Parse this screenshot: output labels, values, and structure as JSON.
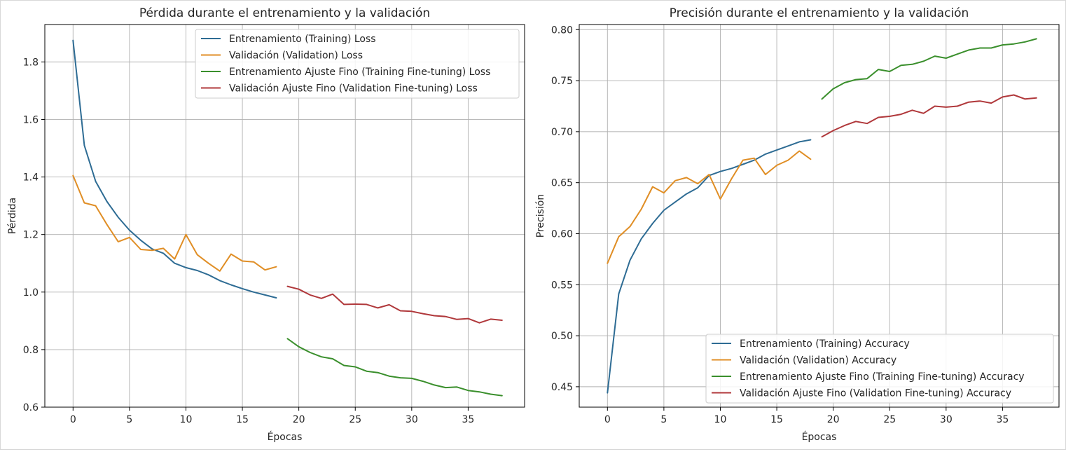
{
  "chart_data": [
    {
      "type": "line",
      "title": "Pérdida durante el entrenamiento y la validación",
      "xlabel": "Épocas",
      "ylabel": "Pérdida",
      "xlim": [
        -2.5,
        40
      ],
      "ylim": [
        0.6,
        1.93
      ],
      "xticks": [
        0,
        5,
        10,
        15,
        20,
        25,
        30,
        35
      ],
      "xtick_labels": [
        "0",
        "5",
        "10",
        "15",
        "20",
        "25",
        "30",
        "35"
      ],
      "yticks": [
        0.6,
        0.8,
        1.0,
        1.2,
        1.4,
        1.6,
        1.8
      ],
      "ytick_labels": [
        "0.6",
        "0.8",
        "1.0",
        "1.2",
        "1.4",
        "1.6",
        "1.8"
      ],
      "grid": true,
      "legend_position": "top-right",
      "series": [
        {
          "name": "Entrenamiento (Training) Loss",
          "color": "#2e6c94",
          "x_start": 0,
          "values": [
            1.875,
            1.51,
            1.385,
            1.315,
            1.26,
            1.215,
            1.18,
            1.15,
            1.135,
            1.1,
            1.085,
            1.075,
            1.06,
            1.04,
            1.025,
            1.012,
            1.0,
            0.99,
            0.98
          ]
        },
        {
          "name": "Validación (Validation) Loss",
          "color": "#e08e25",
          "x_start": 0,
          "values": [
            1.405,
            1.31,
            1.3,
            1.235,
            1.175,
            1.19,
            1.148,
            1.145,
            1.152,
            1.115,
            1.2,
            1.13,
            1.1,
            1.073,
            1.132,
            1.108,
            1.105,
            1.077,
            1.088
          ]
        },
        {
          "name": "Entrenamiento Ajuste Fino (Training Fine-tuning) Loss",
          "color": "#3a8f2c",
          "x_start": 19,
          "values": [
            0.838,
            0.81,
            0.79,
            0.775,
            0.768,
            0.745,
            0.74,
            0.725,
            0.72,
            0.708,
            0.702,
            0.7,
            0.69,
            0.677,
            0.668,
            0.67,
            0.658,
            0.653,
            0.645,
            0.64
          ]
        },
        {
          "name": "Validación Ajuste Fino (Validation Fine-tuning) Loss",
          "color": "#b0383b",
          "x_start": 19,
          "values": [
            1.02,
            1.01,
            0.99,
            0.978,
            0.993,
            0.957,
            0.958,
            0.957,
            0.945,
            0.956,
            0.935,
            0.933,
            0.925,
            0.918,
            0.915,
            0.905,
            0.908,
            0.893,
            0.906,
            0.902
          ]
        }
      ]
    },
    {
      "type": "line",
      "title": "Precisión durante el entrenamiento y la validación",
      "xlabel": "Épocas",
      "ylabel": "Precisión",
      "xlim": [
        -2.5,
        40
      ],
      "ylim": [
        0.43,
        0.805
      ],
      "xticks": [
        0,
        5,
        10,
        15,
        20,
        25,
        30,
        35
      ],
      "xtick_labels": [
        "0",
        "5",
        "10",
        "15",
        "20",
        "25",
        "30",
        "35"
      ],
      "yticks": [
        0.45,
        0.5,
        0.55,
        0.6,
        0.65,
        0.7,
        0.75,
        0.8
      ],
      "ytick_labels": [
        "0.45",
        "0.50",
        "0.55",
        "0.60",
        "0.65",
        "0.70",
        "0.75",
        "0.80"
      ],
      "grid": true,
      "legend_position": "bottom-right",
      "series": [
        {
          "name": "Entrenamiento (Training) Accuracy",
          "color": "#2e6c94",
          "x_start": 0,
          "values": [
            0.444,
            0.541,
            0.574,
            0.595,
            0.61,
            0.623,
            0.631,
            0.639,
            0.645,
            0.657,
            0.661,
            0.664,
            0.668,
            0.672,
            0.678,
            0.682,
            0.686,
            0.69,
            0.692
          ]
        },
        {
          "name": "Validación (Validation) Accuracy",
          "color": "#e08e25",
          "x_start": 0,
          "values": [
            0.571,
            0.597,
            0.607,
            0.624,
            0.646,
            0.64,
            0.652,
            0.655,
            0.649,
            0.658,
            0.634,
            0.654,
            0.672,
            0.674,
            0.658,
            0.667,
            0.672,
            0.681,
            0.673
          ]
        },
        {
          "name": "Entrenamiento Ajuste Fino (Training Fine-tuning) Accuracy",
          "color": "#3a8f2c",
          "x_start": 19,
          "values": [
            0.732,
            0.742,
            0.748,
            0.751,
            0.752,
            0.761,
            0.759,
            0.765,
            0.766,
            0.769,
            0.774,
            0.772,
            0.776,
            0.78,
            0.782,
            0.782,
            0.785,
            0.786,
            0.788,
            0.791
          ]
        },
        {
          "name": "Validación Ajuste Fino (Validation Fine-tuning) Accuracy",
          "color": "#b0383b",
          "x_start": 19,
          "values": [
            0.695,
            0.701,
            0.706,
            0.71,
            0.708,
            0.714,
            0.715,
            0.717,
            0.721,
            0.718,
            0.725,
            0.724,
            0.725,
            0.729,
            0.73,
            0.728,
            0.734,
            0.736,
            0.732,
            0.733
          ]
        }
      ]
    }
  ]
}
